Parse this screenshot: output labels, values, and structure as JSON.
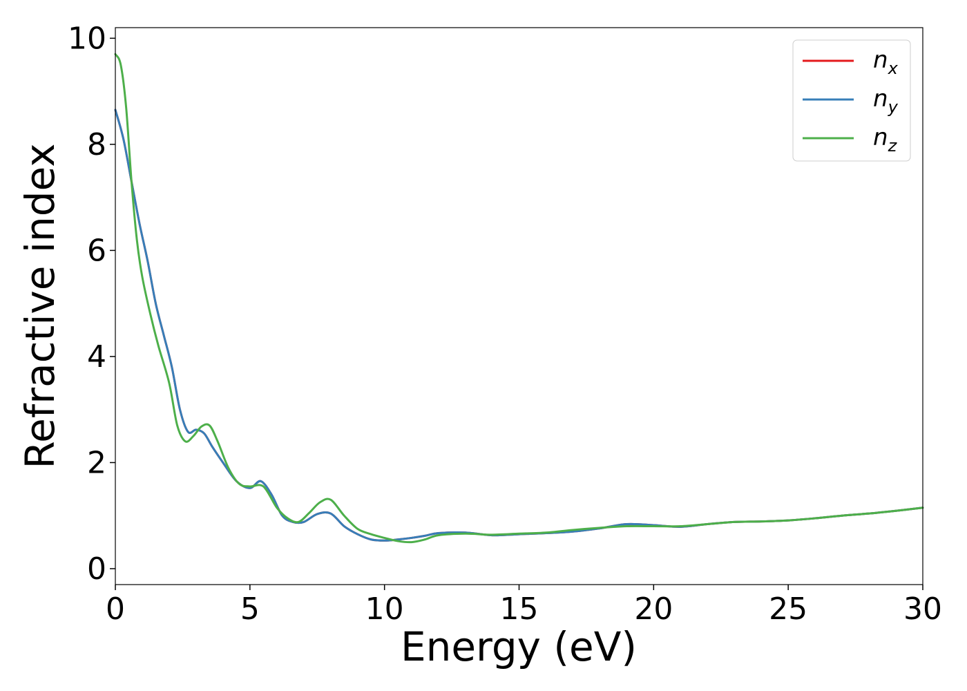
{
  "chart_data": {
    "type": "line",
    "title": "",
    "xlabel": "Energy (eV)",
    "ylabel": "Refractive index",
    "xlim": [
      0,
      30
    ],
    "ylim": [
      -0.3,
      10.2
    ],
    "xticks": [
      0,
      5,
      10,
      15,
      20,
      25,
      30
    ],
    "yticks": [
      0,
      2,
      4,
      6,
      8,
      10
    ],
    "grid": false,
    "legend_position": "top-right",
    "series": [
      {
        "name": "n",
        "subscript": "x",
        "color": "#e41a1c",
        "x": [
          0,
          0.3,
          0.6,
          0.9,
          1.2,
          1.5,
          1.8,
          2.1,
          2.4,
          2.7,
          3.0,
          3.3,
          3.6,
          4.0,
          4.5,
          5.0,
          5.4,
          5.8,
          6.2,
          6.6,
          7.0,
          7.5,
          8.0,
          8.5,
          9.0,
          9.5,
          10.0,
          10.5,
          11.0,
          11.5,
          12.0,
          13.0,
          14.0,
          15.0,
          16.0,
          17.0,
          18.0,
          19.0,
          20.0,
          21.0,
          22.0,
          23.0,
          24.0,
          25.0,
          26.0,
          27.0,
          28.0,
          29.0,
          30.0
        ],
        "y": [
          8.65,
          8.1,
          7.3,
          6.5,
          5.8,
          5.0,
          4.4,
          3.8,
          3.0,
          2.58,
          2.62,
          2.55,
          2.3,
          2.0,
          1.65,
          1.52,
          1.65,
          1.4,
          1.0,
          0.88,
          0.88,
          1.03,
          1.04,
          0.8,
          0.65,
          0.55,
          0.53,
          0.55,
          0.58,
          0.62,
          0.67,
          0.68,
          0.63,
          0.65,
          0.67,
          0.7,
          0.76,
          0.84,
          0.82,
          0.79,
          0.84,
          0.88,
          0.89,
          0.91,
          0.95,
          1.0,
          1.04,
          1.09,
          1.15
        ]
      },
      {
        "name": "n",
        "subscript": "y",
        "color": "#377eb8",
        "x": [
          0,
          0.3,
          0.6,
          0.9,
          1.2,
          1.5,
          1.8,
          2.1,
          2.4,
          2.7,
          3.0,
          3.3,
          3.6,
          4.0,
          4.5,
          5.0,
          5.4,
          5.8,
          6.2,
          6.6,
          7.0,
          7.5,
          8.0,
          8.5,
          9.0,
          9.5,
          10.0,
          10.5,
          11.0,
          11.5,
          12.0,
          13.0,
          14.0,
          15.0,
          16.0,
          17.0,
          18.0,
          19.0,
          20.0,
          21.0,
          22.0,
          23.0,
          24.0,
          25.0,
          26.0,
          27.0,
          28.0,
          29.0,
          30.0
        ],
        "y": [
          8.65,
          8.1,
          7.3,
          6.5,
          5.8,
          5.0,
          4.4,
          3.8,
          3.0,
          2.58,
          2.62,
          2.55,
          2.3,
          2.0,
          1.65,
          1.52,
          1.65,
          1.4,
          1.0,
          0.88,
          0.88,
          1.03,
          1.04,
          0.8,
          0.65,
          0.55,
          0.53,
          0.55,
          0.58,
          0.62,
          0.67,
          0.68,
          0.63,
          0.65,
          0.67,
          0.7,
          0.76,
          0.84,
          0.82,
          0.79,
          0.84,
          0.88,
          0.89,
          0.91,
          0.95,
          1.0,
          1.04,
          1.09,
          1.15
        ]
      },
      {
        "name": "n",
        "subscript": "z",
        "color": "#4daf4a",
        "x": [
          0,
          0.2,
          0.4,
          0.6,
          0.8,
          1.0,
          1.3,
          1.6,
          2.0,
          2.3,
          2.6,
          2.9,
          3.2,
          3.5,
          3.8,
          4.2,
          4.6,
          5.0,
          5.5,
          6.0,
          6.4,
          6.8,
          7.2,
          7.6,
          8.0,
          8.5,
          9.0,
          9.5,
          10.0,
          10.5,
          11.0,
          11.5,
          12.0,
          13.0,
          14.0,
          15.0,
          16.0,
          17.0,
          18.0,
          19.0,
          20.0,
          21.0,
          22.0,
          23.0,
          24.0,
          25.0,
          26.0,
          27.0,
          28.0,
          29.0,
          30.0
        ],
        "y": [
          9.7,
          9.5,
          8.7,
          7.3,
          6.2,
          5.5,
          4.8,
          4.2,
          3.5,
          2.7,
          2.4,
          2.5,
          2.68,
          2.7,
          2.4,
          1.9,
          1.6,
          1.55,
          1.55,
          1.15,
          0.95,
          0.88,
          1.05,
          1.25,
          1.3,
          1.0,
          0.75,
          0.65,
          0.58,
          0.52,
          0.5,
          0.55,
          0.63,
          0.66,
          0.64,
          0.66,
          0.68,
          0.73,
          0.77,
          0.8,
          0.8,
          0.8,
          0.84,
          0.88,
          0.89,
          0.91,
          0.95,
          1.0,
          1.04,
          1.09,
          1.15
        ]
      }
    ]
  }
}
